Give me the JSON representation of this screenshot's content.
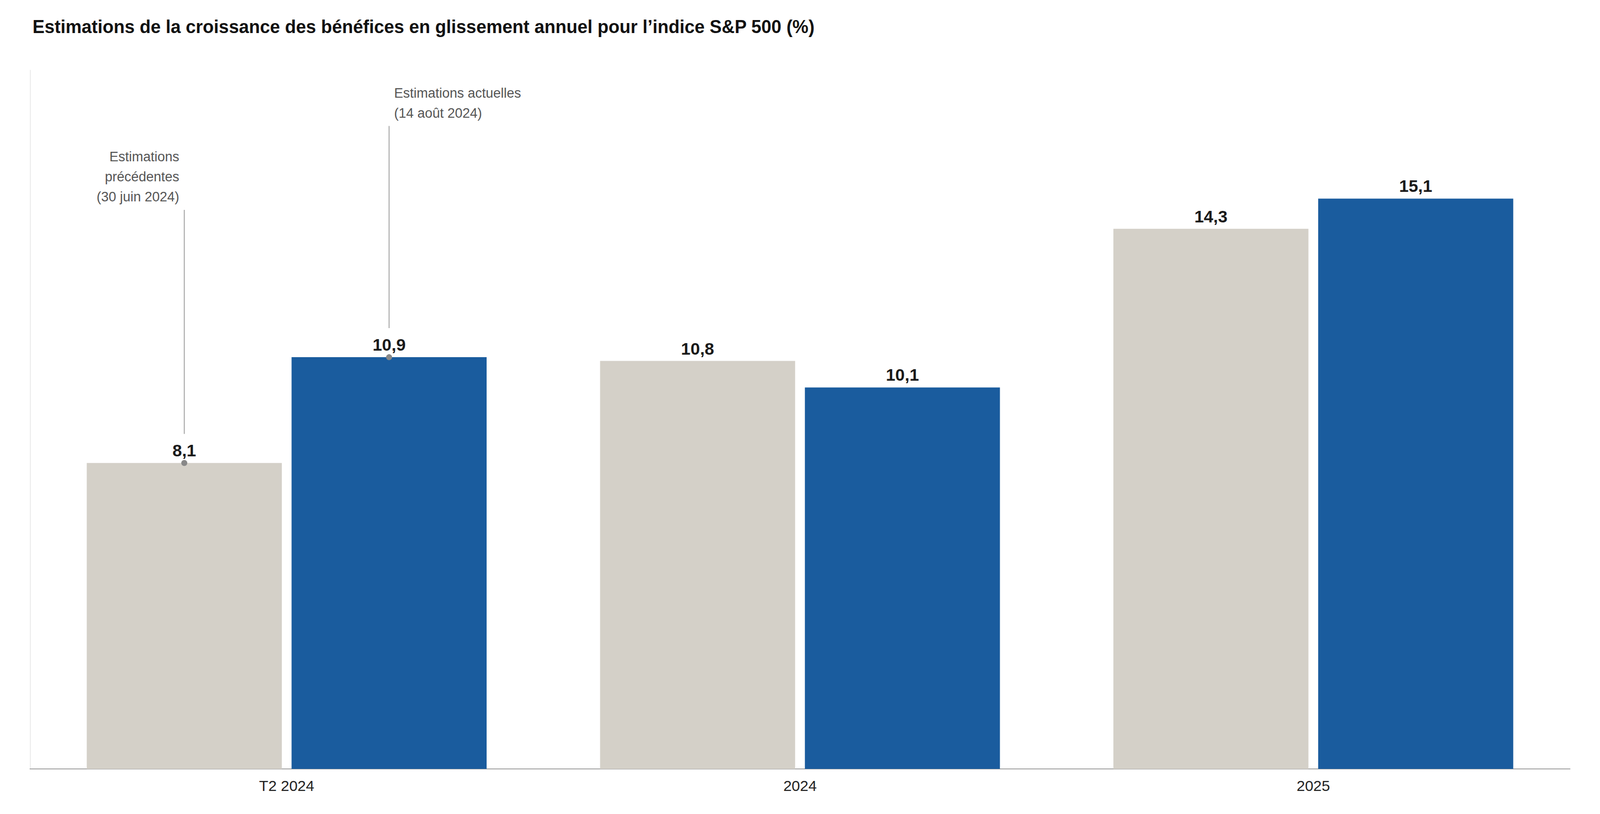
{
  "chart_data": {
    "type": "bar",
    "title": "Estimations de la croissance des bénéfices en glissement annuel pour l’indice S&P 500 (%)",
    "categories": [
      "T2 2024",
      "2024",
      "2025"
    ],
    "series": [
      {
        "color": "#d4d0c8",
        "values": [
          8.1,
          10.8,
          14.3
        ],
        "value_labels": [
          "8,1",
          "10,8",
          "14,3"
        ]
      },
      {
        "color": "#1a5c9e",
        "values": [
          10.9,
          10.1,
          15.1
        ],
        "value_labels": [
          "10,9",
          "10,1",
          "15,1"
        ]
      }
    ],
    "ylim": [
      0,
      18.5
    ],
    "grid": false,
    "data_labels": true,
    "tick_labels": "x",
    "annotations": [
      "Estimations\nprécédentes\n(30 juin 2024)",
      "Estimations actuelles\n(14 août 2024)"
    ]
  }
}
